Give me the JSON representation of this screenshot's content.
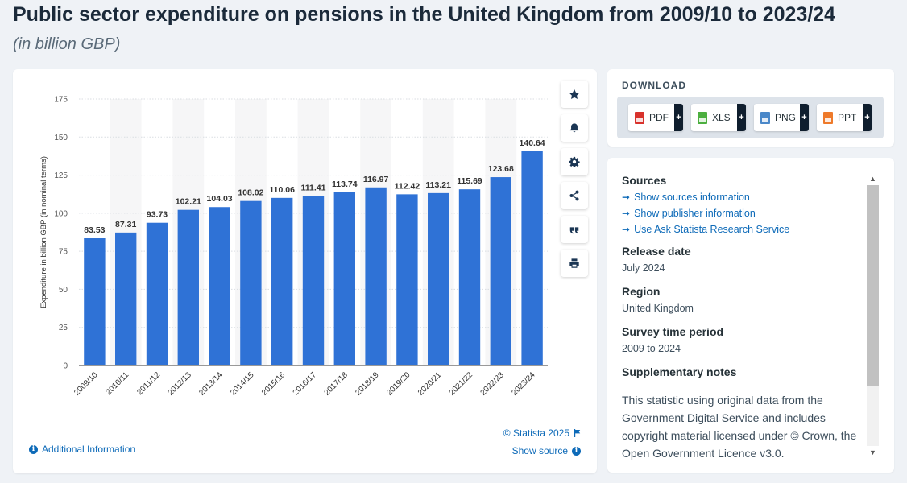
{
  "page": {
    "title": "Public sector expenditure on pensions in the United Kingdom from 2009/10 to 2023/24",
    "subtitle": "(in billion GBP)"
  },
  "chart_data": {
    "type": "bar",
    "title": "Public sector expenditure on pensions in the United Kingdom from 2009/10 to 2023/24",
    "subtitle": "(in billion GBP)",
    "xlabel": "",
    "ylabel": "Expenditure in billion GBP (in nominal terms)",
    "categories": [
      "2009/10",
      "2010/11",
      "2011/12",
      "2012/13",
      "2013/14",
      "2014/15",
      "2015/16",
      "2016/17",
      "2017/18",
      "2018/19",
      "2019/20",
      "2020/21",
      "2021/22",
      "2022/23",
      "2023/24"
    ],
    "values": [
      83.53,
      87.31,
      93.73,
      102.21,
      104.03,
      108.02,
      110.06,
      111.41,
      113.74,
      116.97,
      112.42,
      113.21,
      115.69,
      123.68,
      140.64
    ],
    "value_labels": [
      "83.53",
      "87.31",
      "93.73",
      "102.21",
      "104.03",
      "108.02",
      "110.06",
      "111.41",
      "113.74",
      "116.97",
      "112.42",
      "113.21",
      "115.69",
      "123.68",
      "140.64"
    ],
    "ylim": [
      0,
      175
    ],
    "yticks": [
      0,
      25,
      50,
      75,
      100,
      125,
      150,
      175
    ],
    "grid": true,
    "legend": "none",
    "bar_color": "#2f72d6"
  },
  "toolbar": {
    "buttons": [
      "star-icon",
      "bell-icon",
      "gear-icon",
      "share-icon",
      "quote-icon",
      "print-icon"
    ]
  },
  "chart_footer": {
    "copyright": "© Statista 2025",
    "show_source": "Show source",
    "additional_info": "Additional Information"
  },
  "download": {
    "label": "DOWNLOAD",
    "buttons": [
      {
        "label": "PDF",
        "color": "#d8322c"
      },
      {
        "label": "XLS",
        "color": "#4caf3f"
      },
      {
        "label": "PNG",
        "color": "#4a88c9"
      },
      {
        "label": "PPT",
        "color": "#ee7a2b"
      }
    ]
  },
  "info": {
    "sources_heading": "Sources",
    "source_links": [
      "Show sources information",
      "Show publisher information",
      "Use Ask Statista Research Service"
    ],
    "release_heading": "Release date",
    "release_value": "July 2024",
    "region_heading": "Region",
    "region_value": "United Kingdom",
    "survey_heading": "Survey time period",
    "survey_value": "2009 to 2024",
    "notes_heading": "Supplementary notes",
    "notes_text": "This statistic using original data from the Government Digital Service and includes copyright material licensed under © Crown, the Open Government Licence v3.0."
  }
}
